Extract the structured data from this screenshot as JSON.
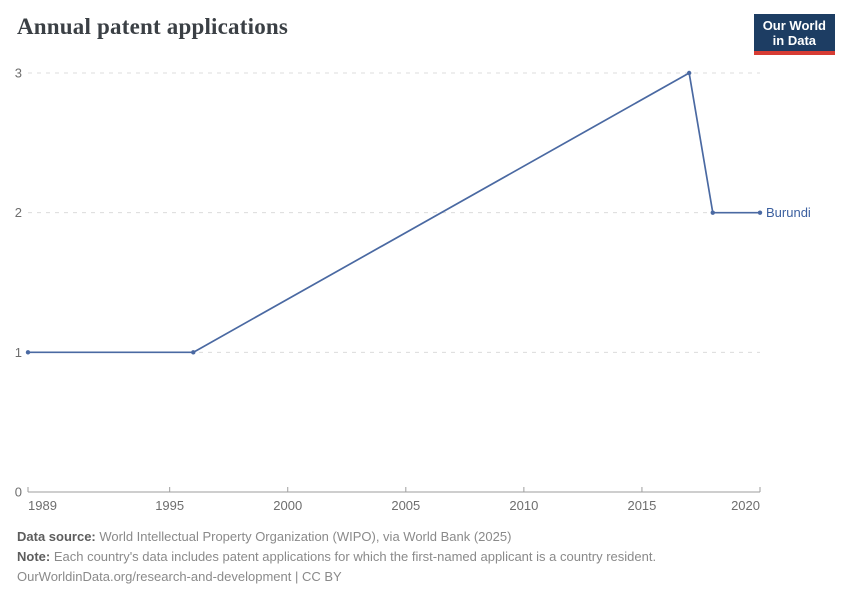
{
  "header": {
    "title": "Annual patent applications"
  },
  "logo": {
    "line1": "Our World",
    "line2": "in Data"
  },
  "chart_data": {
    "type": "line",
    "title": "Annual patent applications",
    "x": [
      1989,
      1996,
      2017,
      2018,
      2020
    ],
    "series": [
      {
        "name": "Burundi",
        "values": [
          1,
          1,
          3,
          2,
          2
        ]
      }
    ],
    "xlabel": "",
    "ylabel": "",
    "xlim": [
      1989,
      2020
    ],
    "ylim": [
      0,
      3
    ],
    "xticks": [
      1989,
      1995,
      2000,
      2005,
      2010,
      2015,
      2020
    ],
    "yticks": [
      0,
      1,
      2,
      3
    ],
    "grid": "horizontal-dashed",
    "legend_position": "end-of-line-label"
  },
  "colors": {
    "line": "#4a69a2",
    "entity_label": "#3b5f9f",
    "grid": "#dcdcdc",
    "axis": "#9e9e9e",
    "tick_label": "#6e6e6e",
    "title": "#3b4045",
    "logo_bg": "#1d3d63",
    "logo_red": "#d73c34"
  },
  "footer": {
    "datasource_label": "Data source:",
    "datasource_text": " World Intellectual Property Organization (WIPO), via World Bank (2025)",
    "note_label": "Note:",
    "note_text": " Each country's data includes patent applications for which the first-named applicant is a country resident.",
    "license_line": "OurWorldinData.org/research-and-development | CC BY"
  }
}
